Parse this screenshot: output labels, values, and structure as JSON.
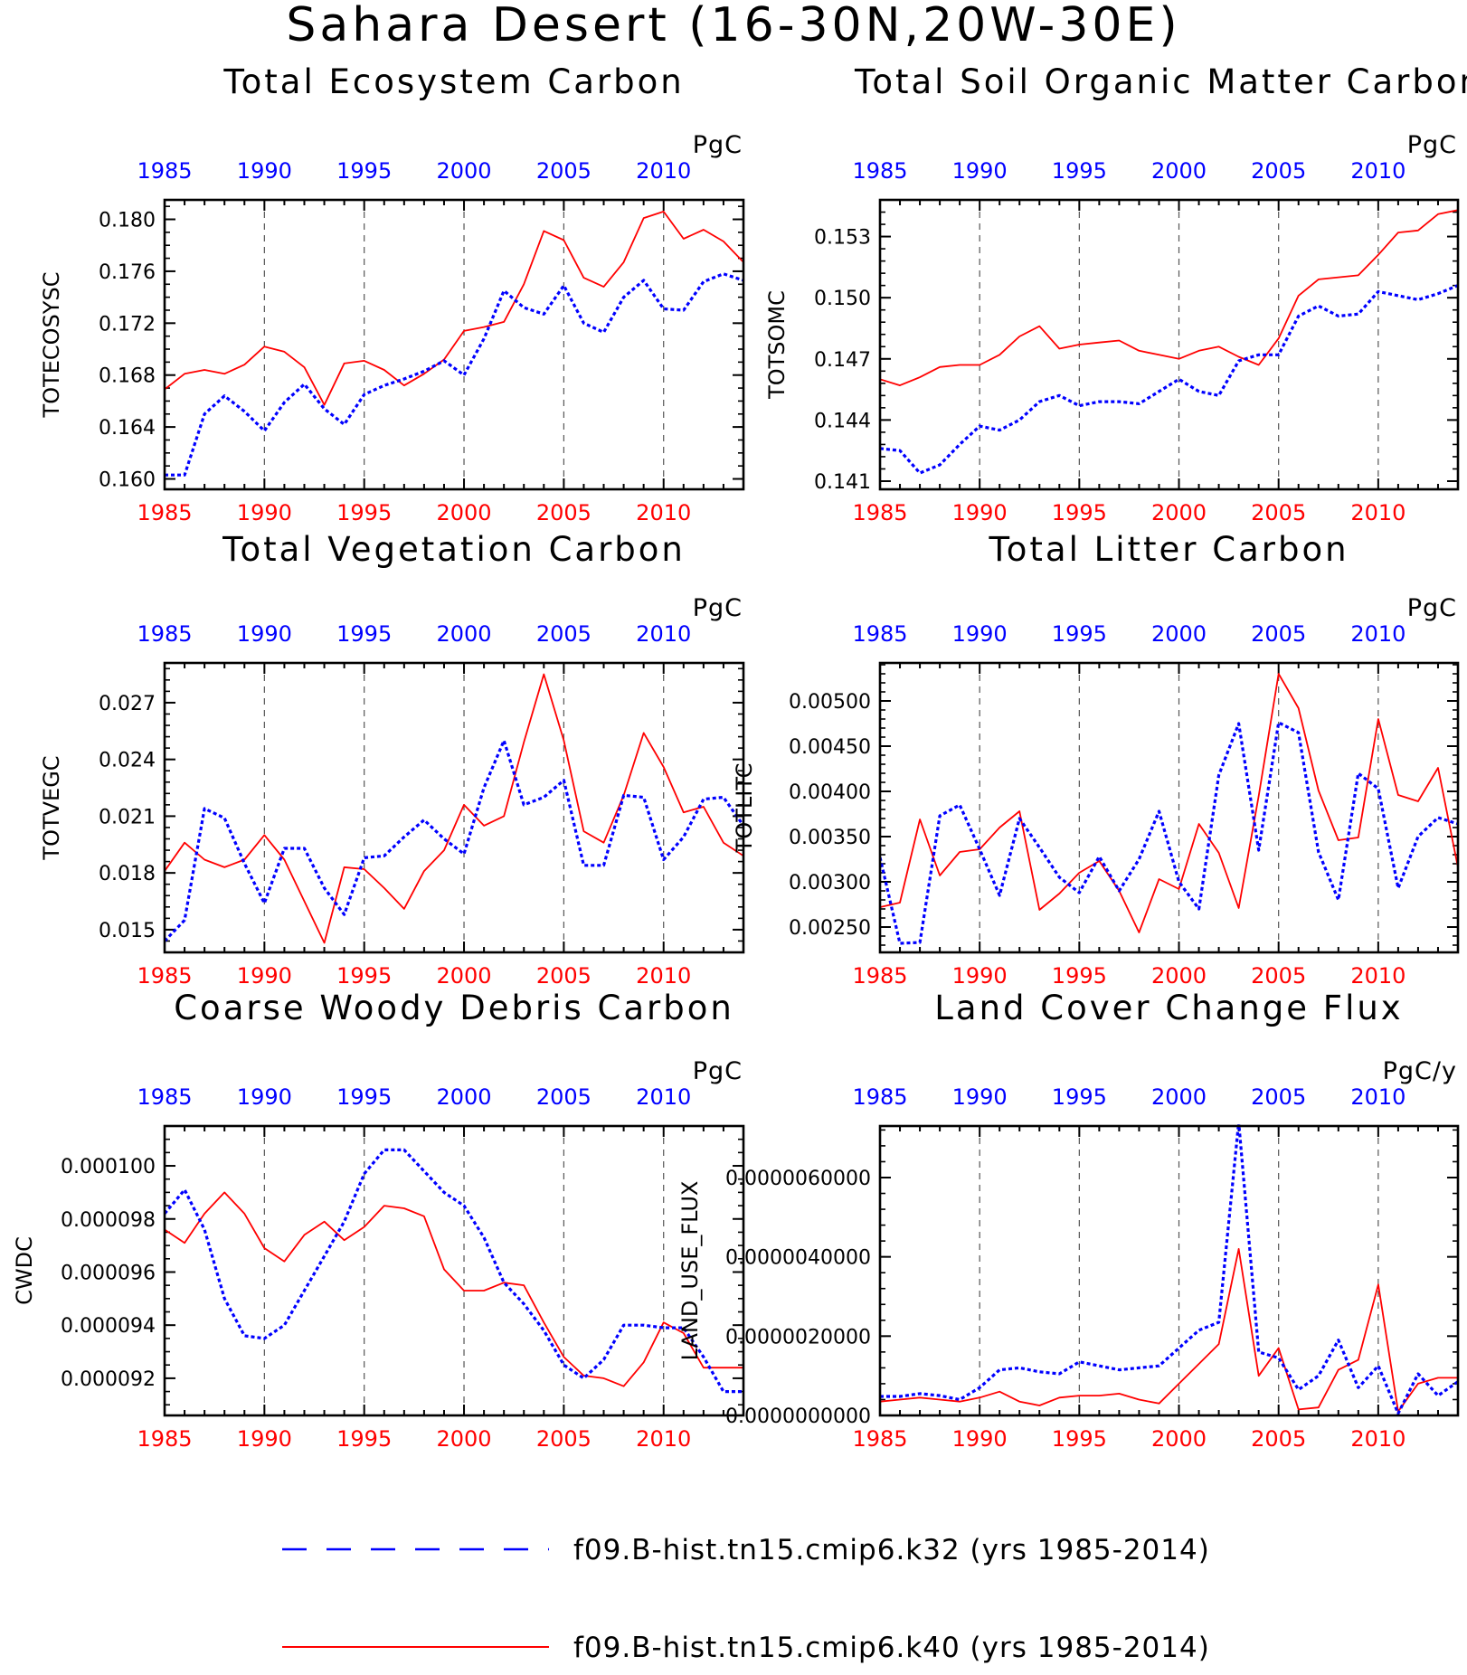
{
  "figure": {
    "title": "Sahara Desert (16-30N,20W-30E)",
    "legend": [
      {
        "label": "f09.B-hist.tn15.cmip6.k32 (yrs 1985-2014)",
        "color": "#0000ff",
        "style": "dashed"
      },
      {
        "label": "f09.B-hist.tn15.cmip6.k40 (yrs 1985-2014)",
        "color": "#ff0000",
        "style": "solid"
      }
    ]
  },
  "chart_data": [
    {
      "type": "line",
      "title": "Total Ecosystem Carbon",
      "units": "PgC",
      "ylabel": "TOTECOSYSC",
      "xlim": [
        1985,
        2014
      ],
      "ylim": [
        0.1592,
        0.1815
      ],
      "yticks": [
        "0.160",
        "0.164",
        "0.168",
        "0.172",
        "0.176",
        "0.180"
      ],
      "ytick_values": [
        0.16,
        0.164,
        0.168,
        0.172,
        0.176,
        0.18
      ],
      "minor_tick_step": 0.001,
      "xticks": [
        "1985",
        "1990",
        "1995",
        "2000",
        "2005",
        "2010"
      ],
      "x": [
        1985,
        1986,
        1987,
        1988,
        1989,
        1990,
        1991,
        1992,
        1993,
        1994,
        1995,
        1996,
        1997,
        1998,
        1999,
        2000,
        2001,
        2002,
        2003,
        2004,
        2005,
        2006,
        2007,
        2008,
        2009,
        2010,
        2011,
        2012,
        2013,
        2014
      ],
      "series": [
        {
          "color": "#0000ff",
          "style": "dashed",
          "values": [
            0.1603,
            0.1603,
            0.165,
            0.1664,
            0.1652,
            0.1637,
            0.1659,
            0.1673,
            0.1654,
            0.1642,
            0.1665,
            0.1672,
            0.1677,
            0.1683,
            0.1691,
            0.168,
            0.1708,
            0.1745,
            0.1732,
            0.1727,
            0.1749,
            0.172,
            0.1713,
            0.174,
            0.1753,
            0.1731,
            0.173,
            0.1752,
            0.1758,
            0.1753
          ]
        },
        {
          "color": "#ff0000",
          "style": "solid",
          "values": [
            0.1669,
            0.1681,
            0.1684,
            0.1681,
            0.1688,
            0.1702,
            0.1698,
            0.1686,
            0.1657,
            0.1689,
            0.1691,
            0.1684,
            0.1672,
            0.1681,
            0.1692,
            0.1714,
            0.1717,
            0.1721,
            0.175,
            0.1791,
            0.1784,
            0.1755,
            0.1748,
            0.1767,
            0.1801,
            0.1806,
            0.1785,
            0.1792,
            0.1783,
            0.1767
          ]
        }
      ]
    },
    {
      "type": "line",
      "title": "Total Soil Organic Matter Carbon",
      "units": "PgC",
      "ylabel": "TOTSOMC",
      "xlim": [
        1985,
        2014
      ],
      "ylim": [
        0.1406,
        0.1548
      ],
      "yticks": [
        "0.141",
        "0.144",
        "0.147",
        "0.150",
        "0.153"
      ],
      "ytick_values": [
        0.141,
        0.144,
        0.147,
        0.15,
        0.153
      ],
      "minor_tick_step": 0.0006,
      "xticks": [
        "1985",
        "1990",
        "1995",
        "2000",
        "2005",
        "2010"
      ],
      "x": [
        1985,
        1986,
        1987,
        1988,
        1989,
        1990,
        1991,
        1992,
        1993,
        1994,
        1995,
        1996,
        1997,
        1998,
        1999,
        2000,
        2001,
        2002,
        2003,
        2004,
        2005,
        2006,
        2007,
        2008,
        2009,
        2010,
        2011,
        2012,
        2013,
        2014
      ],
      "series": [
        {
          "color": "#0000ff",
          "style": "dashed",
          "values": [
            0.1426,
            0.1425,
            0.1414,
            0.1418,
            0.1428,
            0.1437,
            0.1435,
            0.144,
            0.1449,
            0.1452,
            0.1447,
            0.1449,
            0.1449,
            0.1448,
            0.1454,
            0.146,
            0.1454,
            0.1452,
            0.1469,
            0.1472,
            0.1472,
            0.1491,
            0.1496,
            0.1491,
            0.1492,
            0.1503,
            0.1501,
            0.1499,
            0.1502,
            0.1506
          ]
        },
        {
          "color": "#ff0000",
          "style": "solid",
          "values": [
            0.146,
            0.1457,
            0.1461,
            0.1466,
            0.1467,
            0.1467,
            0.1472,
            0.1481,
            0.1486,
            0.1475,
            0.1477,
            0.1478,
            0.1479,
            0.1474,
            0.1472,
            0.147,
            0.1474,
            0.1476,
            0.1471,
            0.1467,
            0.148,
            0.1501,
            0.1509,
            0.151,
            0.1511,
            0.1521,
            0.1532,
            0.1533,
            0.1541,
            0.1543
          ]
        }
      ]
    },
    {
      "type": "line",
      "title": "Total Vegetation Carbon",
      "units": "PgC",
      "ylabel": "TOTVEGC",
      "xlim": [
        1985,
        2014
      ],
      "ylim": [
        0.0138,
        0.0291
      ],
      "yticks": [
        "0.015",
        "0.018",
        "0.021",
        "0.024",
        "0.027"
      ],
      "ytick_values": [
        0.015,
        0.018,
        0.021,
        0.024,
        0.027
      ],
      "minor_tick_step": 0.0006,
      "xticks": [
        "1985",
        "1990",
        "1995",
        "2000",
        "2005",
        "2010"
      ],
      "x": [
        1985,
        1986,
        1987,
        1988,
        1989,
        1990,
        1991,
        1992,
        1993,
        1994,
        1995,
        1996,
        1997,
        1998,
        1999,
        2000,
        2001,
        2002,
        2003,
        2004,
        2005,
        2006,
        2007,
        2008,
        2009,
        2010,
        2011,
        2012,
        2013,
        2014
      ],
      "series": [
        {
          "color": "#0000ff",
          "style": "dashed",
          "values": [
            0.0144,
            0.0155,
            0.0214,
            0.0209,
            0.0185,
            0.0164,
            0.0193,
            0.0193,
            0.0172,
            0.0158,
            0.0188,
            0.0189,
            0.0199,
            0.0208,
            0.0198,
            0.019,
            0.0225,
            0.025,
            0.0216,
            0.022,
            0.0229,
            0.0184,
            0.0184,
            0.0221,
            0.022,
            0.0187,
            0.0199,
            0.0219,
            0.022,
            0.0205
          ]
        },
        {
          "color": "#ff0000",
          "style": "solid",
          "values": [
            0.0181,
            0.0196,
            0.0187,
            0.0183,
            0.0187,
            0.02,
            0.0187,
            0.0165,
            0.0143,
            0.0183,
            0.0182,
            0.0172,
            0.0161,
            0.0181,
            0.0192,
            0.0216,
            0.0205,
            0.021,
            0.0249,
            0.0285,
            0.025,
            0.0202,
            0.0196,
            0.0221,
            0.0254,
            0.0236,
            0.0212,
            0.0215,
            0.0196,
            0.0189
          ]
        }
      ]
    },
    {
      "type": "line",
      "title": "Total Litter Carbon",
      "units": "PgC",
      "ylabel": "TOTLITC",
      "xlim": [
        1985,
        2014
      ],
      "ylim": [
        0.00222,
        0.00542
      ],
      "yticks": [
        "0.00250",
        "0.00300",
        "0.00350",
        "0.00400",
        "0.00450",
        "0.00500"
      ],
      "ytick_values": [
        0.0025,
        0.003,
        0.0035,
        0.004,
        0.0045,
        0.005
      ],
      "minor_tick_step": 0.0001,
      "xticks": [
        "1985",
        "1990",
        "1995",
        "2000",
        "2005",
        "2010"
      ],
      "x": [
        1985,
        1986,
        1987,
        1988,
        1989,
        1990,
        1991,
        1992,
        1993,
        1994,
        1995,
        1996,
        1997,
        1998,
        1999,
        2000,
        2001,
        2002,
        2003,
        2004,
        2005,
        2006,
        2007,
        2008,
        2009,
        2010,
        2011,
        2012,
        2013,
        2014
      ],
      "series": [
        {
          "color": "#0000ff",
          "style": "dashed",
          "values": [
            0.00327,
            0.00232,
            0.00233,
            0.00373,
            0.00385,
            0.00336,
            0.00285,
            0.0037,
            0.00338,
            0.00305,
            0.00288,
            0.00328,
            0.0029,
            0.00325,
            0.00378,
            0.003,
            0.0027,
            0.00418,
            0.00475,
            0.00335,
            0.00476,
            0.00465,
            0.00333,
            0.0028,
            0.0042,
            0.00403,
            0.00293,
            0.0035,
            0.00371,
            0.00364
          ]
        },
        {
          "color": "#ff0000",
          "style": "solid",
          "values": [
            0.00272,
            0.00277,
            0.00369,
            0.00307,
            0.00333,
            0.00336,
            0.0036,
            0.00378,
            0.00269,
            0.00287,
            0.0031,
            0.00323,
            0.0029,
            0.00244,
            0.00303,
            0.00292,
            0.00364,
            0.00332,
            0.00271,
            0.00395,
            0.0053,
            0.00492,
            0.00401,
            0.00346,
            0.00349,
            0.0048,
            0.00396,
            0.00389,
            0.00426,
            0.00316
          ]
        }
      ]
    },
    {
      "type": "line",
      "title": "Coarse Woody Debris Carbon",
      "units": "PgC",
      "ylabel": "CWDC",
      "xlim": [
        1985,
        2014
      ],
      "ylim": [
        9.06e-05,
        0.0001015
      ],
      "yticks": [
        "0.000092",
        "0.000094",
        "0.000096",
        "0.000098",
        "0.000100"
      ],
      "ytick_values": [
        9.2e-05,
        9.4e-05,
        9.6e-05,
        9.8e-05,
        0.0001
      ],
      "minor_tick_step": 5e-07,
      "xticks": [
        "1985",
        "1990",
        "1995",
        "2000",
        "2005",
        "2010"
      ],
      "x": [
        1985,
        1986,
        1987,
        1988,
        1989,
        1990,
        1991,
        1992,
        1993,
        1994,
        1995,
        1996,
        1997,
        1998,
        1999,
        2000,
        2001,
        2002,
        2003,
        2004,
        2005,
        2006,
        2007,
        2008,
        2009,
        2010,
        2011,
        2012,
        2013,
        2014
      ],
      "series": [
        {
          "color": "#0000ff",
          "style": "dashed",
          "values": [
            9.82e-05,
            9.91e-05,
            9.76e-05,
            9.5e-05,
            9.36e-05,
            9.35e-05,
            9.4e-05,
            9.53e-05,
            9.66e-05,
            9.79e-05,
            9.97e-05,
            0.0001006,
            0.0001006,
            9.98e-05,
            9.9e-05,
            9.85e-05,
            9.73e-05,
            9.56e-05,
            9.48e-05,
            9.38e-05,
            9.25e-05,
            9.2e-05,
            9.27e-05,
            9.4e-05,
            9.4e-05,
            9.39e-05,
            9.39e-05,
            9.28e-05,
            9.15e-05,
            9.15e-05
          ]
        },
        {
          "color": "#ff0000",
          "style": "solid",
          "values": [
            9.76e-05,
            9.71e-05,
            9.82e-05,
            9.9e-05,
            9.82e-05,
            9.69e-05,
            9.64e-05,
            9.74e-05,
            9.79e-05,
            9.72e-05,
            9.77e-05,
            9.85e-05,
            9.84e-05,
            9.81e-05,
            9.61e-05,
            9.53e-05,
            9.53e-05,
            9.56e-05,
            9.55e-05,
            9.41e-05,
            9.28e-05,
            9.21e-05,
            9.2e-05,
            9.17e-05,
            9.26e-05,
            9.41e-05,
            9.37e-05,
            9.24e-05,
            9.24e-05,
            9.24e-05
          ]
        }
      ]
    },
    {
      "type": "line",
      "title": "Land Cover Change Flux",
      "units": "PgC/y",
      "ylabel": "LAND_USE_FLUX",
      "xlim": [
        1985,
        2014
      ],
      "ylim": [
        0,
        7.3e-06
      ],
      "yticks": [
        "0.0000000000",
        "0.0000020000",
        "0.0000040000",
        "0.0000060000"
      ],
      "ytick_values": [
        0,
        2e-06,
        4e-06,
        6e-06
      ],
      "minor_tick_step": 4e-07,
      "xticks": [
        "1985",
        "1990",
        "1995",
        "2000",
        "2005",
        "2010"
      ],
      "x": [
        1985,
        1986,
        1987,
        1988,
        1989,
        1990,
        1991,
        1992,
        1993,
        1994,
        1995,
        1996,
        1997,
        1998,
        1999,
        2000,
        2001,
        2002,
        2003,
        2004,
        2005,
        2006,
        2007,
        2008,
        2009,
        2010,
        2011,
        2012,
        2013,
        2014
      ],
      "series": [
        {
          "color": "#0000ff",
          "style": "dashed",
          "values": [
            4.8e-07,
            4.8e-07,
            5.5e-07,
            5e-07,
            4e-07,
            7e-07,
            1.15e-06,
            1.2e-06,
            1.1e-06,
            1.05e-06,
            1.35e-06,
            1.25e-06,
            1.15e-06,
            1.2e-06,
            1.25e-06,
            1.7e-06,
            2.15e-06,
            2.35e-06,
            7.4e-06,
            1.6e-06,
            1.45e-06,
            6.5e-07,
            1e-06,
            1.9e-06,
            7e-07,
            1.25e-06,
            5e-08,
            1.05e-06,
            5e-07,
            8.5e-07
          ]
        },
        {
          "color": "#ff0000",
          "style": "solid",
          "values": [
            3.5e-07,
            4e-07,
            4.5e-07,
            4e-07,
            3.5e-07,
            4.5e-07,
            6e-07,
            3.5e-07,
            2.5e-07,
            4.5e-07,
            5e-07,
            5e-07,
            5.5e-07,
            4e-07,
            3e-07,
            8e-07,
            1.3e-06,
            1.8e-06,
            4.2e-06,
            1e-06,
            1.7e-06,
            1.5e-07,
            2e-07,
            1.15e-06,
            1.4e-06,
            3.3e-06,
            1e-07,
            8e-07,
            9.5e-07,
            9.5e-07
          ]
        }
      ]
    }
  ]
}
